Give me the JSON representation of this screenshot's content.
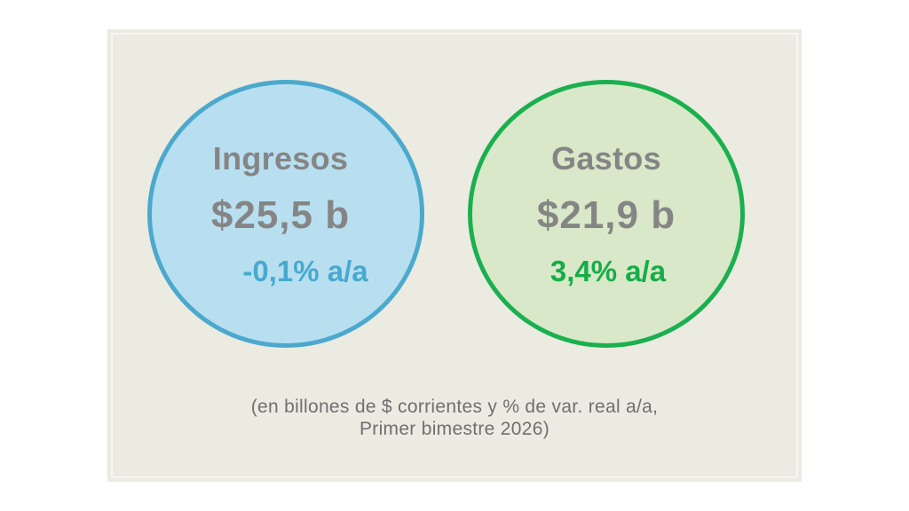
{
  "ingresos": {
    "label": "Ingresos",
    "amount": "$25,5 b",
    "change": "-0,1% a/a",
    "color": "#4ba9cd",
    "fill": "#b8dff0"
  },
  "gastos": {
    "label": "Gastos",
    "amount": "$21,9 b",
    "change": "3,4% a/a",
    "color": "#1ab04f",
    "fill": "#d9e8c8"
  },
  "note": {
    "line1": "(en billones de $ corrientes y % de var. real a/a,",
    "line2": "Primer bimestre 2026)"
  },
  "colors": {
    "background": "#ecebe2",
    "text": "#858585"
  }
}
